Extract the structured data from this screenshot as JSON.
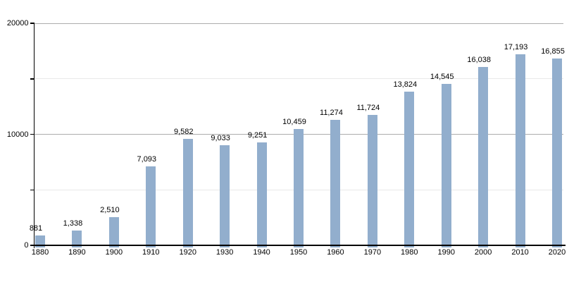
{
  "chart_data": {
    "type": "bar",
    "title": "",
    "xlabel": "",
    "ylabel": "",
    "categories": [
      "1880",
      "1890",
      "1900",
      "1910",
      "1920",
      "1930",
      "1940",
      "1950",
      "1960",
      "1970",
      "1980",
      "1990",
      "2000",
      "2010",
      "2020"
    ],
    "values": [
      881,
      1338,
      2510,
      7093,
      9582,
      9033,
      9251,
      10459,
      11274,
      11724,
      13824,
      14545,
      16038,
      17193,
      16855
    ],
    "value_labels": [
      "881",
      "1,338",
      "2,510",
      "7,093",
      "9,582",
      "9,033",
      "9,251",
      "10,459",
      "11,274",
      "11,724",
      "13,824",
      "14,545",
      "16,038",
      "17,193",
      "16,855"
    ],
    "ylim": [
      0,
      20000
    ],
    "ytick_labels": [
      {
        "value": 0,
        "label": "0"
      },
      {
        "value": 10000,
        "label": "10000"
      },
      {
        "value": 20000,
        "label": "20000"
      }
    ],
    "ytick_marks": [
      0,
      5000,
      10000,
      15000,
      20000
    ],
    "gridlines_major": [
      10000,
      20000
    ],
    "gridlines_minor": [
      5000,
      15000
    ],
    "grid": true,
    "legend": false,
    "colors": {
      "bar": "#92aecd",
      "axis": "#000000",
      "grid_major": "#adadad",
      "grid_minor": "#e9e9e9",
      "text": "#000000",
      "background": "#ffffff"
    }
  }
}
